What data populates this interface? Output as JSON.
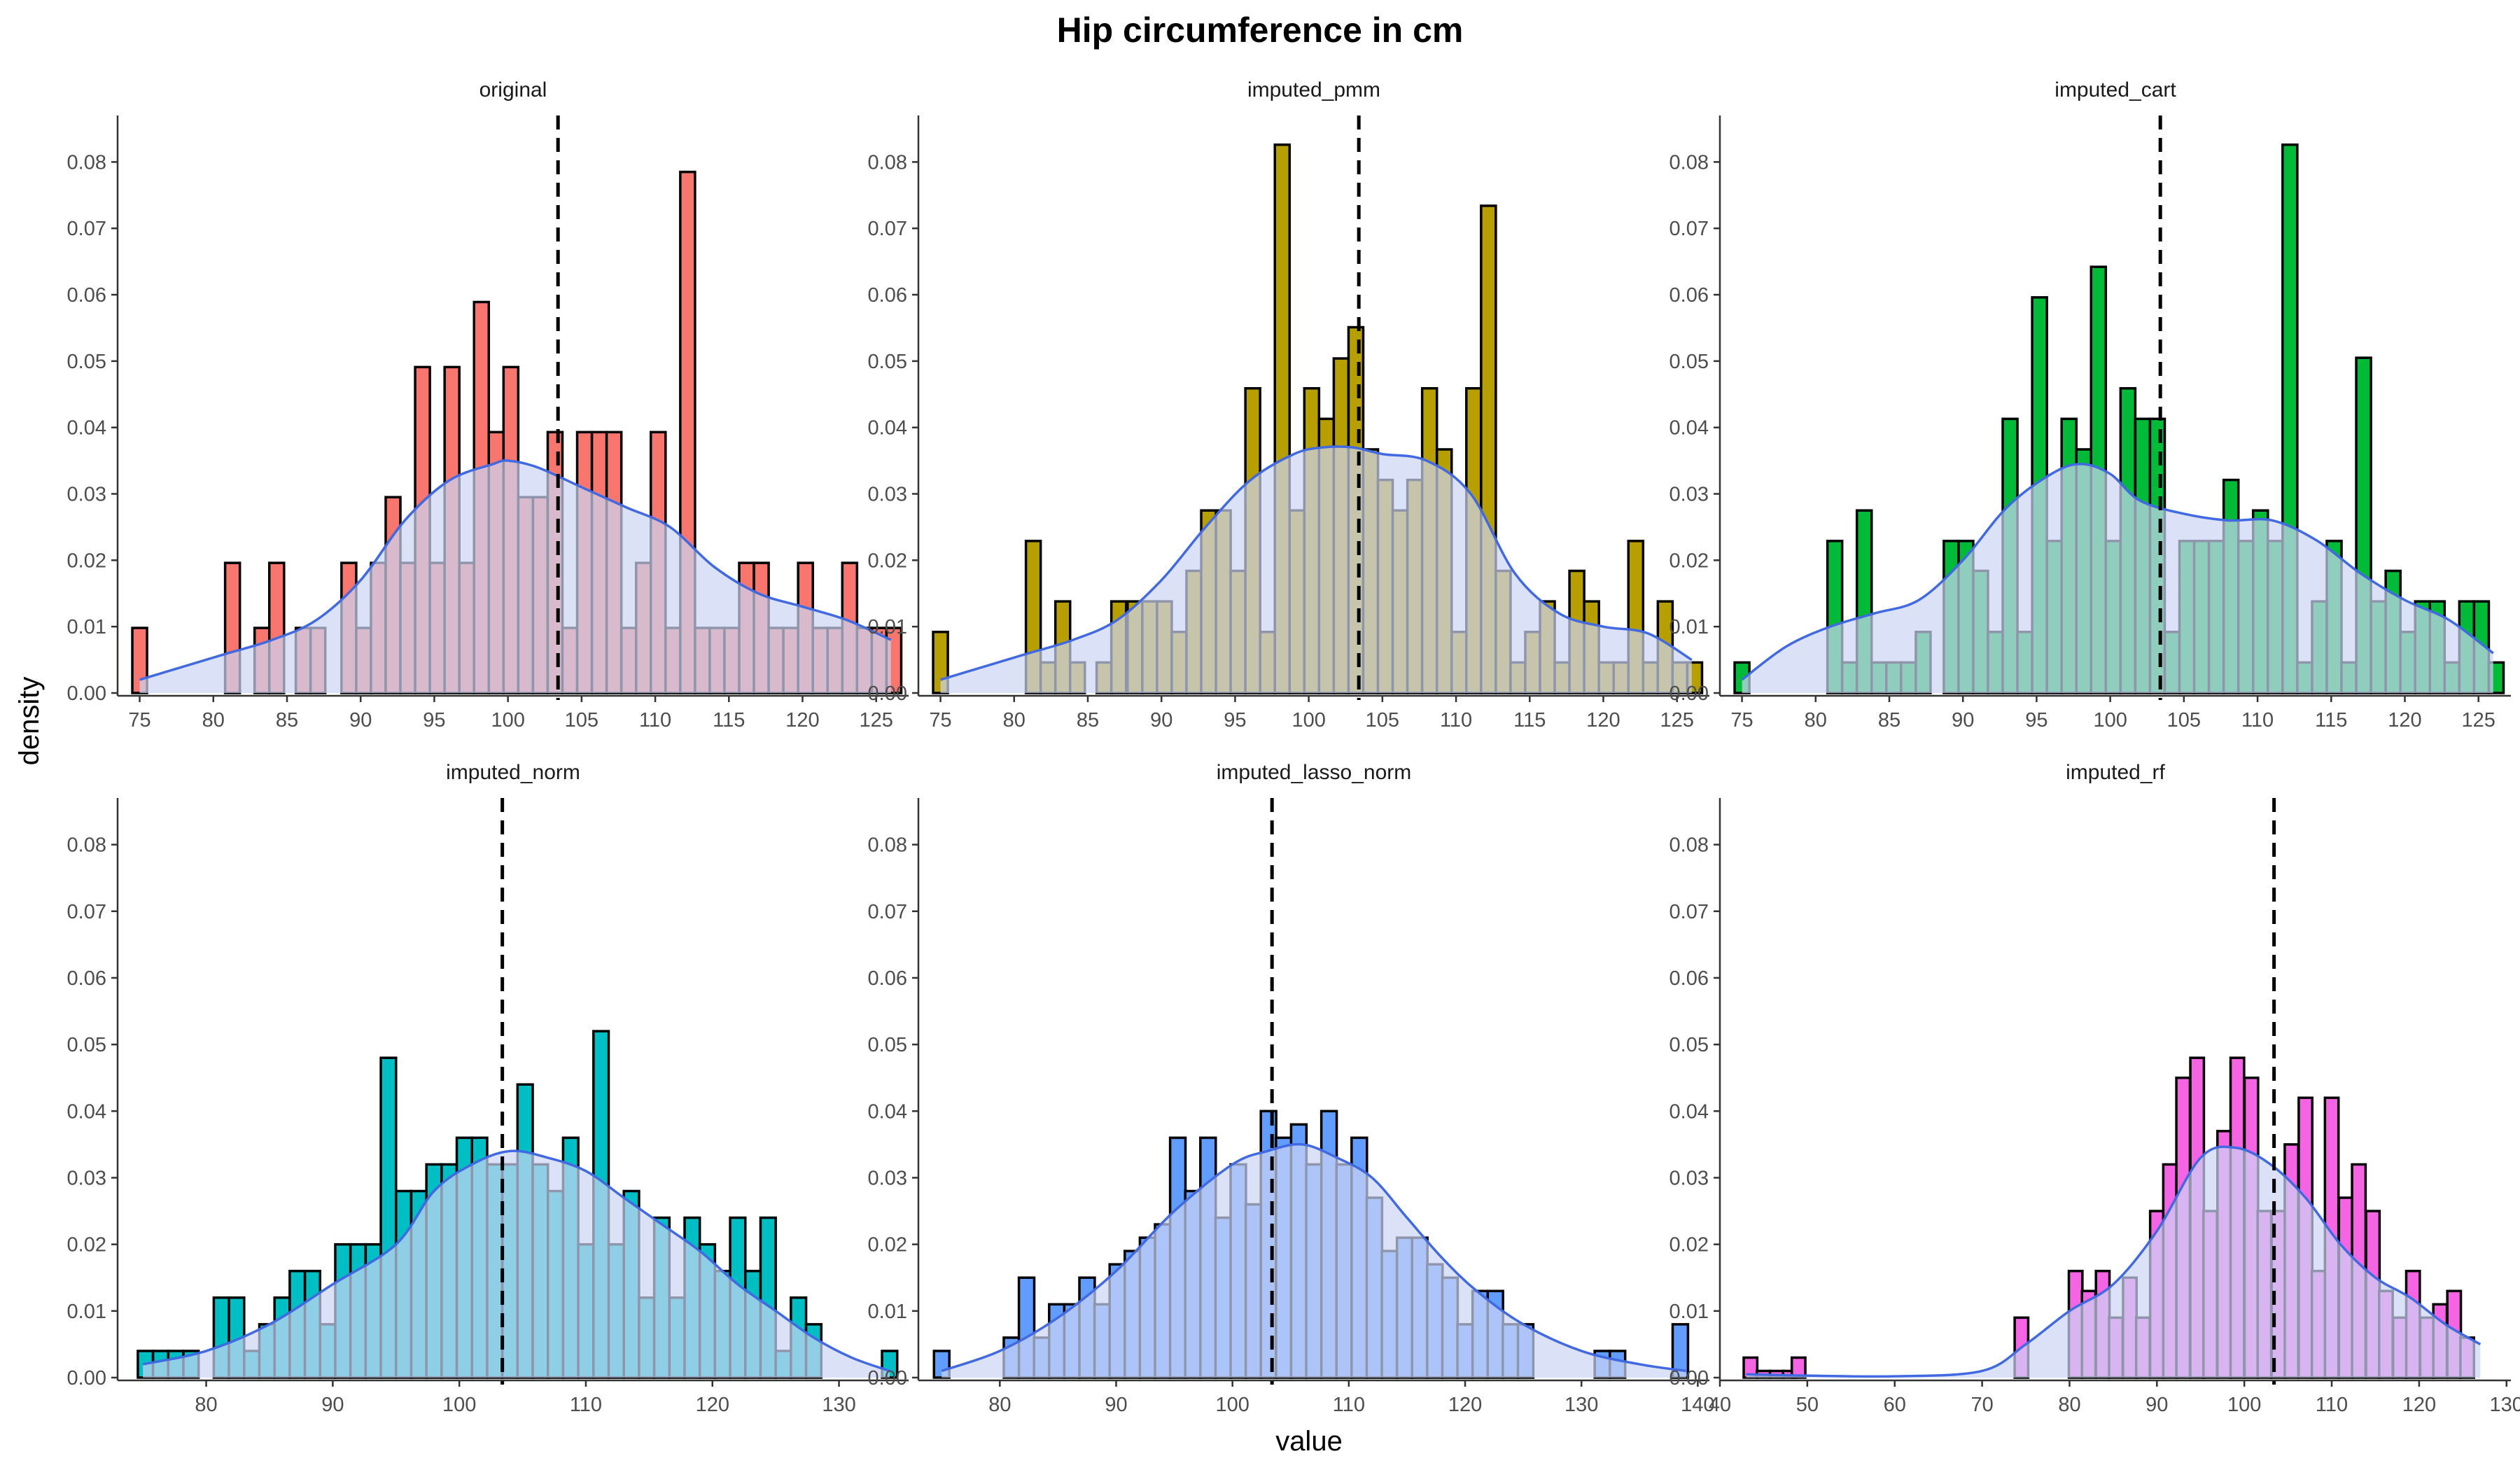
{
  "chart_data": {
    "type": "histogram",
    "title": "Hip circumference in cm",
    "xlabel": "value",
    "ylabel": "density",
    "grid": false,
    "legend": "none",
    "layout": "2 rows x 3 columns facets, free x scales",
    "mean_line_value": 103.4,
    "colors": {
      "density_line": "#4169E1",
      "density_fill": "#CCD6F5",
      "bar_outline": "#000000",
      "mean_line": "#000000"
    },
    "facets": [
      {
        "name": "original",
        "fill": "#F8766D",
        "xlim": [
          73.5,
          127.2
        ],
        "xticks": [
          75,
          80,
          85,
          90,
          95,
          100,
          105,
          110,
          115,
          120,
          125
        ],
        "ylim": [
          0,
          0.087
        ],
        "yticks": [
          0,
          0.01,
          0.02,
          0.03,
          0.04,
          0.05,
          0.06,
          0.07,
          0.08
        ],
        "yticklabels": [
          "0.00",
          "0.01",
          "0.02",
          "0.03",
          "0.04",
          "0.05",
          "0.06",
          "0.07",
          "0.08"
        ],
        "binwidth": 1.0,
        "bins_x": [
          75.0,
          81.3,
          83.3,
          84.3,
          86.1,
          87.1,
          89.2,
          90.2,
          91.2,
          92.2,
          93.2,
          94.2,
          95.2,
          96.2,
          97.2,
          98.2,
          99.2,
          100.2,
          101.2,
          102.2,
          103.2,
          104.2,
          105.2,
          106.2,
          107.2,
          108.2,
          109.2,
          110.2,
          111.2,
          112.2,
          113.2,
          114.2,
          115.2,
          116.2,
          117.2,
          118.2,
          119.2,
          120.2,
          121.2,
          122.2,
          123.2,
          124.2,
          125.2,
          126.2
        ],
        "bins_y": [
          0.0098,
          0.0196,
          0.0098,
          0.0196,
          0.0098,
          0.0098,
          0.0196,
          0.0098,
          0.0196,
          0.0295,
          0.0196,
          0.0491,
          0.0196,
          0.0491,
          0.0196,
          0.0589,
          0.0393,
          0.0491,
          0.0295,
          0.0295,
          0.0393,
          0.0098,
          0.0393,
          0.0393,
          0.0393,
          0.0098,
          0.0196,
          0.0393,
          0.0098,
          0.0785,
          0.0098,
          0.0098,
          0.0098,
          0.0196,
          0.0196,
          0.0098,
          0.0098,
          0.0196,
          0.0098,
          0.0098,
          0.0196,
          0.0098,
          0.0098,
          0.0098
        ],
        "density_x": [
          75,
          78,
          81,
          84,
          87,
          90,
          93,
          96,
          99,
          100,
          102,
          105,
          108,
          111,
          114,
          117,
          120,
          123,
          126
        ],
        "density_y": [
          0.002,
          0.004,
          0.006,
          0.008,
          0.011,
          0.017,
          0.026,
          0.032,
          0.0345,
          0.035,
          0.034,
          0.031,
          0.028,
          0.025,
          0.019,
          0.015,
          0.013,
          0.011,
          0.008
        ]
      },
      {
        "name": "imputed_pmm",
        "fill": "#B79F00",
        "xlim": [
          73.5,
          127.2
        ],
        "xticks": [
          75,
          80,
          85,
          90,
          95,
          100,
          105,
          110,
          115,
          120,
          125
        ],
        "ylim": [
          0,
          0.087
        ],
        "yticks": [
          0,
          0.01,
          0.02,
          0.03,
          0.04,
          0.05,
          0.06,
          0.07,
          0.08
        ],
        "yticklabels": [
          "0.00",
          "0.01",
          "0.02",
          "0.03",
          "0.04",
          "0.05",
          "0.06",
          "0.07",
          "0.08"
        ],
        "binwidth": 1.0,
        "bins_x": [
          75.0,
          81.3,
          82.3,
          83.3,
          84.3,
          86.1,
          87.1,
          88.2,
          89.2,
          90.2,
          91.2,
          92.2,
          93.2,
          94.2,
          95.2,
          96.2,
          97.2,
          98.2,
          99.2,
          100.2,
          101.2,
          102.2,
          103.2,
          104.2,
          105.2,
          106.2,
          107.2,
          108.2,
          109.2,
          110.2,
          111.2,
          112.2,
          113.2,
          114.2,
          115.2,
          116.2,
          117.2,
          118.2,
          119.2,
          120.2,
          121.2,
          122.2,
          123.2,
          124.2,
          125.2,
          126.2
        ],
        "bins_y": [
          0.0092,
          0.0229,
          0.0046,
          0.0138,
          0.0046,
          0.0046,
          0.0138,
          0.0138,
          0.0138,
          0.0138,
          0.0092,
          0.0184,
          0.0275,
          0.0275,
          0.0184,
          0.0459,
          0.0092,
          0.0826,
          0.0275,
          0.0459,
          0.0413,
          0.0504,
          0.0551,
          0.0367,
          0.0321,
          0.0275,
          0.0321,
          0.0459,
          0.0367,
          0.0092,
          0.0459,
          0.0734,
          0.0184,
          0.0046,
          0.0092,
          0.0138,
          0.0046,
          0.0184,
          0.0138,
          0.0046,
          0.0046,
          0.0229,
          0.0046,
          0.0138,
          0.0046,
          0.0046
        ],
        "density_x": [
          75,
          78,
          81,
          84,
          87,
          90,
          93,
          96,
          99,
          101,
          103,
          105,
          108,
          111,
          114,
          117,
          120,
          123,
          126
        ],
        "density_y": [
          0.002,
          0.004,
          0.006,
          0.008,
          0.011,
          0.017,
          0.025,
          0.032,
          0.036,
          0.037,
          0.037,
          0.036,
          0.035,
          0.03,
          0.018,
          0.012,
          0.01,
          0.009,
          0.005
        ]
      },
      {
        "name": "imputed_cart",
        "fill": "#00BA38",
        "xlim": [
          73.5,
          127.2
        ],
        "xticks": [
          75,
          80,
          85,
          90,
          95,
          100,
          105,
          110,
          115,
          120,
          125
        ],
        "ylim": [
          0,
          0.087
        ],
        "yticks": [
          0,
          0.01,
          0.02,
          0.03,
          0.04,
          0.05,
          0.06,
          0.07,
          0.08
        ],
        "yticklabels": [
          "0.00",
          "0.01",
          "0.02",
          "0.03",
          "0.04",
          "0.05",
          "0.06",
          "0.07",
          "0.08"
        ],
        "binwidth": 1.0,
        "bins_x": [
          75.0,
          81.3,
          82.3,
          83.3,
          84.3,
          85.3,
          86.3,
          87.3,
          89.2,
          90.2,
          91.2,
          92.2,
          93.2,
          94.2,
          95.2,
          96.2,
          97.2,
          98.2,
          99.2,
          100.2,
          101.2,
          102.2,
          103.2,
          104.2,
          105.2,
          106.2,
          107.2,
          108.2,
          109.2,
          110.2,
          111.2,
          112.2,
          113.2,
          114.2,
          115.2,
          116.2,
          117.2,
          118.2,
          119.2,
          120.2,
          121.2,
          122.2,
          123.2,
          124.2,
          125.2,
          126.2
        ],
        "bins_y": [
          0.0046,
          0.0229,
          0.0046,
          0.0275,
          0.0046,
          0.0046,
          0.0046,
          0.0092,
          0.0229,
          0.0229,
          0.0184,
          0.0092,
          0.0413,
          0.0092,
          0.0596,
          0.0229,
          0.0413,
          0.0367,
          0.0642,
          0.0229,
          0.0459,
          0.0413,
          0.0413,
          0.0092,
          0.0229,
          0.0229,
          0.0229,
          0.0321,
          0.0229,
          0.0275,
          0.0229,
          0.0826,
          0.0046,
          0.0138,
          0.0229,
          0.0046,
          0.0505,
          0.0138,
          0.0184,
          0.0092,
          0.0138,
          0.0138,
          0.0046,
          0.0138,
          0.0138,
          0.0046
        ],
        "density_x": [
          75,
          78,
          81,
          84,
          87,
          90,
          93,
          96,
          98,
          100,
          102,
          105,
          108,
          111,
          114,
          117,
          120,
          123,
          126
        ],
        "density_y": [
          0.002,
          0.007,
          0.01,
          0.012,
          0.014,
          0.02,
          0.028,
          0.033,
          0.0345,
          0.033,
          0.029,
          0.027,
          0.026,
          0.026,
          0.023,
          0.018,
          0.014,
          0.011,
          0.006
        ]
      },
      {
        "name": "imputed_norm",
        "fill": "#00BFC4",
        "xlim": [
          73.0,
          135.5
        ],
        "xticks": [
          80,
          90,
          100,
          110,
          120,
          130
        ],
        "ylim": [
          0,
          0.087
        ],
        "yticks": [
          0,
          0.01,
          0.02,
          0.03,
          0.04,
          0.05,
          0.06,
          0.07,
          0.08
        ],
        "yticklabels": [
          "0.00",
          "0.01",
          "0.02",
          "0.03",
          "0.04",
          "0.05",
          "0.06",
          "0.07",
          "0.08"
        ],
        "binwidth": 1.2,
        "bins_x": [
          75.2,
          76.4,
          77.6,
          78.8,
          81.2,
          82.4,
          83.6,
          84.8,
          86.0,
          87.2,
          88.4,
          89.6,
          90.8,
          92.0,
          93.2,
          94.4,
          95.6,
          96.8,
          98.0,
          99.2,
          100.4,
          101.6,
          102.8,
          104.0,
          105.2,
          106.4,
          107.6,
          108.8,
          110.0,
          111.2,
          112.4,
          113.6,
          114.8,
          116.0,
          117.2,
          118.4,
          119.6,
          120.8,
          122.0,
          123.2,
          124.4,
          125.6,
          126.8,
          128.0,
          134.0
        ],
        "bins_y": [
          0.004,
          0.004,
          0.004,
          0.004,
          0.012,
          0.012,
          0.004,
          0.008,
          0.012,
          0.016,
          0.016,
          0.008,
          0.02,
          0.02,
          0.02,
          0.048,
          0.028,
          0.028,
          0.032,
          0.032,
          0.036,
          0.036,
          0.032,
          0.032,
          0.044,
          0.032,
          0.028,
          0.036,
          0.02,
          0.052,
          0.02,
          0.028,
          0.012,
          0.024,
          0.012,
          0.024,
          0.02,
          0.016,
          0.024,
          0.016,
          0.024,
          0.004,
          0.012,
          0.008,
          0.004
        ],
        "density_x": [
          75,
          80,
          85,
          90,
          95,
          98,
          101,
          104,
          107,
          110,
          113,
          116,
          119,
          122,
          125,
          128,
          131,
          134
        ],
        "density_y": [
          0.002,
          0.004,
          0.008,
          0.014,
          0.02,
          0.028,
          0.032,
          0.034,
          0.033,
          0.031,
          0.027,
          0.023,
          0.019,
          0.014,
          0.01,
          0.006,
          0.003,
          0.001
        ]
      },
      {
        "name": "imputed_lasso_norm",
        "fill": "#619CFF",
        "xlim": [
          73.0,
          141.0
        ],
        "xticks": [
          80,
          90,
          100,
          110,
          120,
          130,
          140
        ],
        "ylim": [
          0,
          0.087
        ],
        "yticks": [
          0,
          0.01,
          0.02,
          0.03,
          0.04,
          0.05,
          0.06,
          0.07,
          0.08
        ],
        "yticklabels": [
          "0.00",
          "0.01",
          "0.02",
          "0.03",
          "0.04",
          "0.05",
          "0.06",
          "0.07",
          "0.08"
        ],
        "binwidth": 1.32,
        "bins_x": [
          75.0,
          81.0,
          82.3,
          83.6,
          84.9,
          86.2,
          87.5,
          88.8,
          90.1,
          91.4,
          92.7,
          94.0,
          95.3,
          96.6,
          97.9,
          99.2,
          100.5,
          101.8,
          103.1,
          104.4,
          105.7,
          107.0,
          108.3,
          109.6,
          110.9,
          112.2,
          113.5,
          114.8,
          116.1,
          117.4,
          118.7,
          120.0,
          121.3,
          122.6,
          123.9,
          125.2,
          131.8,
          133.1,
          138.5
        ],
        "bins_y": [
          0.004,
          0.006,
          0.015,
          0.006,
          0.011,
          0.011,
          0.015,
          0.011,
          0.017,
          0.019,
          0.021,
          0.023,
          0.036,
          0.028,
          0.036,
          0.024,
          0.032,
          0.026,
          0.04,
          0.036,
          0.038,
          0.032,
          0.04,
          0.032,
          0.036,
          0.027,
          0.019,
          0.021,
          0.021,
          0.017,
          0.015,
          0.008,
          0.013,
          0.013,
          0.008,
          0.008,
          0.004,
          0.004,
          0.008
        ],
        "density_x": [
          75,
          80,
          85,
          90,
          95,
          100,
          103,
          106,
          109,
          112,
          115,
          118,
          121,
          125,
          130,
          135,
          139
        ],
        "density_y": [
          0.001,
          0.004,
          0.009,
          0.016,
          0.025,
          0.032,
          0.034,
          0.035,
          0.033,
          0.03,
          0.024,
          0.018,
          0.013,
          0.008,
          0.004,
          0.002,
          0.001
        ]
      },
      {
        "name": "imputed_rf",
        "fill": "#F564E3",
        "xlim": [
          40.0,
          130.5
        ],
        "xticks": [
          40,
          50,
          60,
          70,
          80,
          90,
          100,
          110,
          120,
          130
        ],
        "ylim": [
          0,
          0.087
        ],
        "yticks": [
          0,
          0.01,
          0.02,
          0.03,
          0.04,
          0.05,
          0.06,
          0.07,
          0.08
        ],
        "yticklabels": [
          "0.00",
          "0.01",
          "0.02",
          "0.03",
          "0.04",
          "0.05",
          "0.06",
          "0.07",
          "0.08"
        ],
        "binwidth": 1.55,
        "bins_x": [
          43.5,
          45.0,
          46.5,
          48.0,
          49.0,
          74.5,
          80.7,
          82.2,
          83.8,
          85.3,
          86.9,
          88.4,
          90.0,
          91.5,
          93.0,
          94.6,
          96.1,
          97.7,
          99.2,
          100.8,
          102.3,
          103.9,
          105.4,
          107.0,
          108.5,
          110.0,
          111.6,
          113.1,
          114.7,
          116.2,
          117.8,
          119.3,
          120.9,
          122.4,
          124.0,
          125.5
        ],
        "bins_y": [
          0.003,
          0.001,
          0.001,
          0.001,
          0.003,
          0.009,
          0.016,
          0.013,
          0.016,
          0.009,
          0.015,
          0.009,
          0.025,
          0.032,
          0.045,
          0.048,
          0.025,
          0.037,
          0.048,
          0.045,
          0.025,
          0.025,
          0.035,
          0.042,
          0.016,
          0.042,
          0.027,
          0.032,
          0.025,
          0.013,
          0.009,
          0.016,
          0.009,
          0.011,
          0.013,
          0.006
        ],
        "density_x": [
          43,
          50,
          60,
          70,
          75,
          80,
          85,
          90,
          95,
          99,
          103,
          107,
          111,
          115,
          119,
          123,
          127
        ],
        "density_y": [
          0.0005,
          0.0003,
          0.0002,
          0.001,
          0.005,
          0.01,
          0.014,
          0.022,
          0.033,
          0.0345,
          0.032,
          0.027,
          0.02,
          0.015,
          0.012,
          0.008,
          0.005
        ]
      }
    ]
  }
}
